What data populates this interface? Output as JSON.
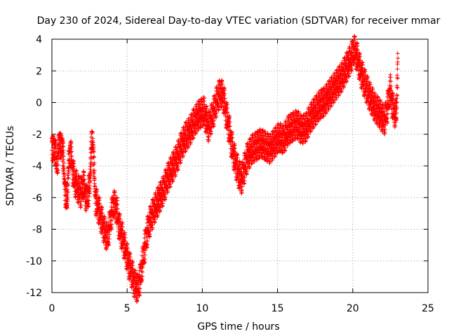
{
  "chart_data": {
    "type": "scatter",
    "title": "Day 230 of 2024, Sidereal Day-to-day VTEC variation (SDTVAR) for receiver mmar",
    "xlabel": "GPS time / hours",
    "ylabel": "SDTVAR / TECUs",
    "xlim": [
      0,
      25
    ],
    "ylim": [
      -12,
      4
    ],
    "grid": true,
    "marker": "plus",
    "x_ticks": [
      "0",
      "5",
      "10",
      "15",
      "20",
      "25"
    ],
    "y_ticks": [
      "4",
      "2",
      "0",
      "-2",
      "-4",
      "-6",
      "-8",
      "-10",
      "-12"
    ],
    "series": [
      {
        "name": "SDTVAR",
        "color": "#ff0000",
        "points": [
          [
            0.0,
            -2.5
          ],
          [
            0.1,
            -3.2
          ],
          [
            0.2,
            -2.8
          ],
          [
            0.3,
            -4.0
          ],
          [
            0.4,
            -3.5
          ],
          [
            0.5,
            -2.2
          ],
          [
            0.6,
            -3.0
          ],
          [
            0.7,
            -2.6
          ],
          [
            0.8,
            -4.5
          ],
          [
            0.9,
            -5.8
          ],
          [
            1.0,
            -6.4
          ],
          [
            1.1,
            -4.2
          ],
          [
            1.2,
            -3.0
          ],
          [
            1.3,
            -3.6
          ],
          [
            1.4,
            -4.4
          ],
          [
            1.5,
            -5.0
          ],
          [
            1.7,
            -5.4
          ],
          [
            1.9,
            -5.8
          ],
          [
            2.1,
            -5.2
          ],
          [
            2.3,
            -6.2
          ],
          [
            2.5,
            -5.4
          ],
          [
            2.6,
            -3.2
          ],
          [
            2.7,
            -2.2
          ],
          [
            2.9,
            -6.2
          ],
          [
            3.1,
            -6.8
          ],
          [
            3.3,
            -7.5
          ],
          [
            3.5,
            -8.2
          ],
          [
            3.7,
            -8.6
          ],
          [
            3.9,
            -7.4
          ],
          [
            4.1,
            -6.4
          ],
          [
            4.3,
            -6.8
          ],
          [
            4.5,
            -8.0
          ],
          [
            4.7,
            -8.6
          ],
          [
            4.9,
            -9.4
          ],
          [
            5.1,
            -10.2
          ],
          [
            5.3,
            -10.8
          ],
          [
            5.5,
            -11.5
          ],
          [
            5.7,
            -11.8
          ],
          [
            5.9,
            -11.0
          ],
          [
            6.1,
            -9.6
          ],
          [
            6.3,
            -8.4
          ],
          [
            6.5,
            -7.6
          ],
          [
            6.8,
            -6.8
          ],
          [
            7.1,
            -6.2
          ],
          [
            7.4,
            -5.6
          ],
          [
            7.7,
            -4.8
          ],
          [
            8.0,
            -4.2
          ],
          [
            8.3,
            -3.6
          ],
          [
            8.6,
            -2.8
          ],
          [
            8.9,
            -2.2
          ],
          [
            9.2,
            -1.8
          ],
          [
            9.5,
            -1.2
          ],
          [
            9.8,
            -0.8
          ],
          [
            10.1,
            -0.6
          ],
          [
            10.4,
            -1.6
          ],
          [
            10.7,
            -0.8
          ],
          [
            11.0,
            0.2
          ],
          [
            11.2,
            0.6
          ],
          [
            11.4,
            0.3
          ],
          [
            11.6,
            -0.8
          ],
          [
            11.8,
            -1.8
          ],
          [
            12.0,
            -3.0
          ],
          [
            12.2,
            -3.8
          ],
          [
            12.4,
            -4.5
          ],
          [
            12.6,
            -4.9
          ],
          [
            12.8,
            -4.2
          ],
          [
            13.0,
            -3.5
          ],
          [
            13.3,
            -3.0
          ],
          [
            13.6,
            -2.8
          ],
          [
            13.9,
            -2.6
          ],
          [
            14.2,
            -2.8
          ],
          [
            14.5,
            -3.0
          ],
          [
            14.8,
            -2.6
          ],
          [
            15.1,
            -2.2
          ],
          [
            15.4,
            -2.4
          ],
          [
            15.7,
            -1.8
          ],
          [
            16.0,
            -1.6
          ],
          [
            16.3,
            -1.4
          ],
          [
            16.6,
            -1.8
          ],
          [
            16.9,
            -1.6
          ],
          [
            17.2,
            -1.0
          ],
          [
            17.5,
            -0.6
          ],
          [
            17.8,
            -0.2
          ],
          [
            18.1,
            0.0
          ],
          [
            18.4,
            0.4
          ],
          [
            18.7,
            0.8
          ],
          [
            19.0,
            1.2
          ],
          [
            19.3,
            1.6
          ],
          [
            19.6,
            2.2
          ],
          [
            19.9,
            2.8
          ],
          [
            20.1,
            3.3
          ],
          [
            20.3,
            2.8
          ],
          [
            20.5,
            2.0
          ],
          [
            20.7,
            1.4
          ],
          [
            20.9,
            0.9
          ],
          [
            21.1,
            0.4
          ],
          [
            21.3,
            0.0
          ],
          [
            21.5,
            -0.4
          ],
          [
            21.7,
            -0.6
          ],
          [
            21.9,
            -0.9
          ],
          [
            22.1,
            -1.2
          ],
          [
            22.3,
            -0.4
          ],
          [
            22.5,
            0.8
          ],
          [
            22.7,
            -0.6
          ],
          [
            22.9,
            -0.8
          ],
          [
            23.0,
            2.8
          ]
        ]
      }
    ]
  }
}
